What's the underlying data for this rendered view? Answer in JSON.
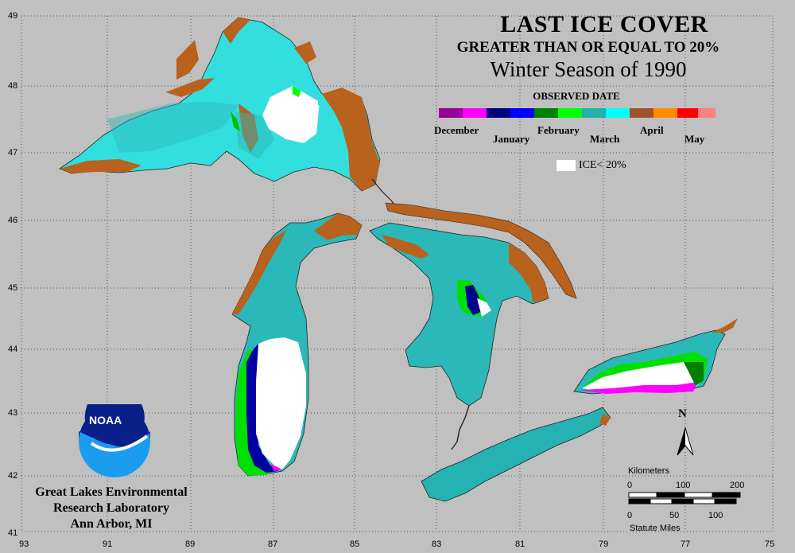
{
  "title": "LAST ICE COVER",
  "subtitle": "GREATER THAN OR EQUAL TO 20%",
  "season": "Winter Season of 1990",
  "legend": {
    "title": "OBSERVED DATE",
    "months": [
      "December",
      "January",
      "February",
      "March",
      "April",
      "May"
    ],
    "below_threshold_label": "ICE< 20%",
    "colors": {
      "December": [
        "#990099",
        "#ff00ff"
      ],
      "January": [
        "#000080",
        "#0000ff"
      ],
      "February": [
        "#008000",
        "#00ff00"
      ],
      "March": [
        "#20b2aa",
        "#00ffff"
      ],
      "April": [
        "#a0522d",
        "#ff8c00"
      ],
      "May": [
        "#ff0000",
        "#ff8080"
      ],
      "ice_below": "#ffffff"
    }
  },
  "credit": [
    "Great Lakes Environmental",
    "Research Laboratory",
    "Ann Arbor, MI"
  ],
  "logo_text": "NOAA",
  "north_label": "N",
  "scale_bar": {
    "km_label": "Kilometers",
    "km_ticks": [
      "0",
      "100",
      "200"
    ],
    "mi_label": "Statute Miles",
    "mi_ticks": [
      "0",
      "50",
      "100"
    ]
  },
  "axes": {
    "longitude": [
      "93",
      "91",
      "89",
      "87",
      "85",
      "83",
      "81",
      "79",
      "77",
      "75"
    ],
    "latitude": [
      "49",
      "48",
      "47",
      "46",
      "45",
      "44",
      "43",
      "42",
      "41"
    ]
  },
  "lake_colors": {
    "superior_main": "#33dede",
    "superior_shore": "#b8621e",
    "huron": "#2ab8b8",
    "erie": "#25b2b2",
    "ontario": "#2ab8b8",
    "michigan": "#2ab8b8"
  }
}
